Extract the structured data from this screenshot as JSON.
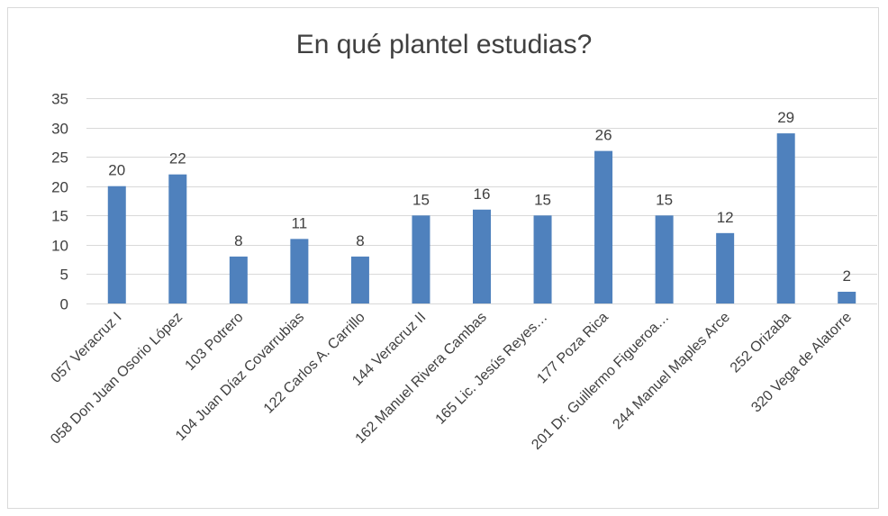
{
  "chart_data": {
    "type": "bar",
    "title": "En qué plantel estudias?",
    "xlabel": "",
    "ylabel": "",
    "categories": [
      "057 Veracruz I",
      "058 Don Juan Osorio López",
      "103 Potrero",
      "104 Juan Díaz Covarrubias",
      "122 Carlos A. Carrillo",
      "144 Veracruz II",
      "162 Manuel Rivera Cambas",
      "165 Lic. Jesús Reyes…",
      "177 Poza Rica",
      "201 Dr. Guillermo Figueroa…",
      "244 Manuel Maples Arce",
      "252 Orizaba",
      "320 Vega de Alatorre"
    ],
    "values": [
      20,
      22,
      8,
      11,
      8,
      15,
      16,
      15,
      26,
      15,
      12,
      29,
      2
    ],
    "ylim": [
      0,
      35
    ],
    "yticks": [
      0,
      5,
      10,
      15,
      20,
      25,
      30,
      35
    ],
    "grid": true,
    "legend": "none",
    "data_labels": true,
    "bar_color": "#4f81bd",
    "grid_color": "#d9d9d9"
  }
}
